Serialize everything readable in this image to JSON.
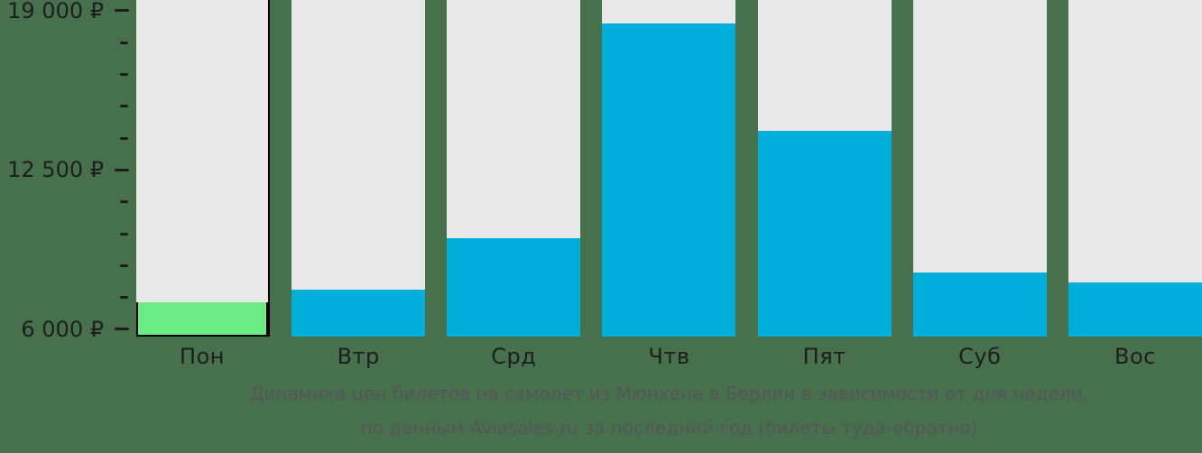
{
  "chart_data": {
    "type": "bar",
    "categories": [
      "Пон",
      "Втр",
      "Срд",
      "Чтв",
      "Пят",
      "Суб",
      "Вос"
    ],
    "values": [
      7100,
      7600,
      9700,
      18500,
      14100,
      8300,
      7900
    ],
    "value_unit": "₽",
    "highlight_index": 0,
    "legend": "none",
    "grid": "off",
    "axis": {
      "min": 5700,
      "max": 19440,
      "major_ticks": [
        {
          "value": 19000,
          "label": "19 000 ₽"
        },
        {
          "value": 12500,
          "label": "12 500 ₽"
        },
        {
          "value": 6000,
          "label": "6 000 ₽"
        }
      ],
      "minor_tick_values": [
        17700,
        16400,
        15100,
        13800,
        11200,
        9900,
        8600,
        7300
      ]
    },
    "colors": {
      "bar": "#00AEDB",
      "highlight_bar": "#6BEB83",
      "track": "#E8E8E8",
      "outline": "#000000",
      "background": "#47704D",
      "axis_text": "#1E1E1E",
      "caption_text": "#55565A"
    }
  },
  "caption": {
    "line1": "Динамика цен билетов на самолет из Мюнхена в Берлин в зависимости от дня недели,",
    "line2": "по данным Aviasales.ru за последний год (билеты туда-обратно)"
  }
}
